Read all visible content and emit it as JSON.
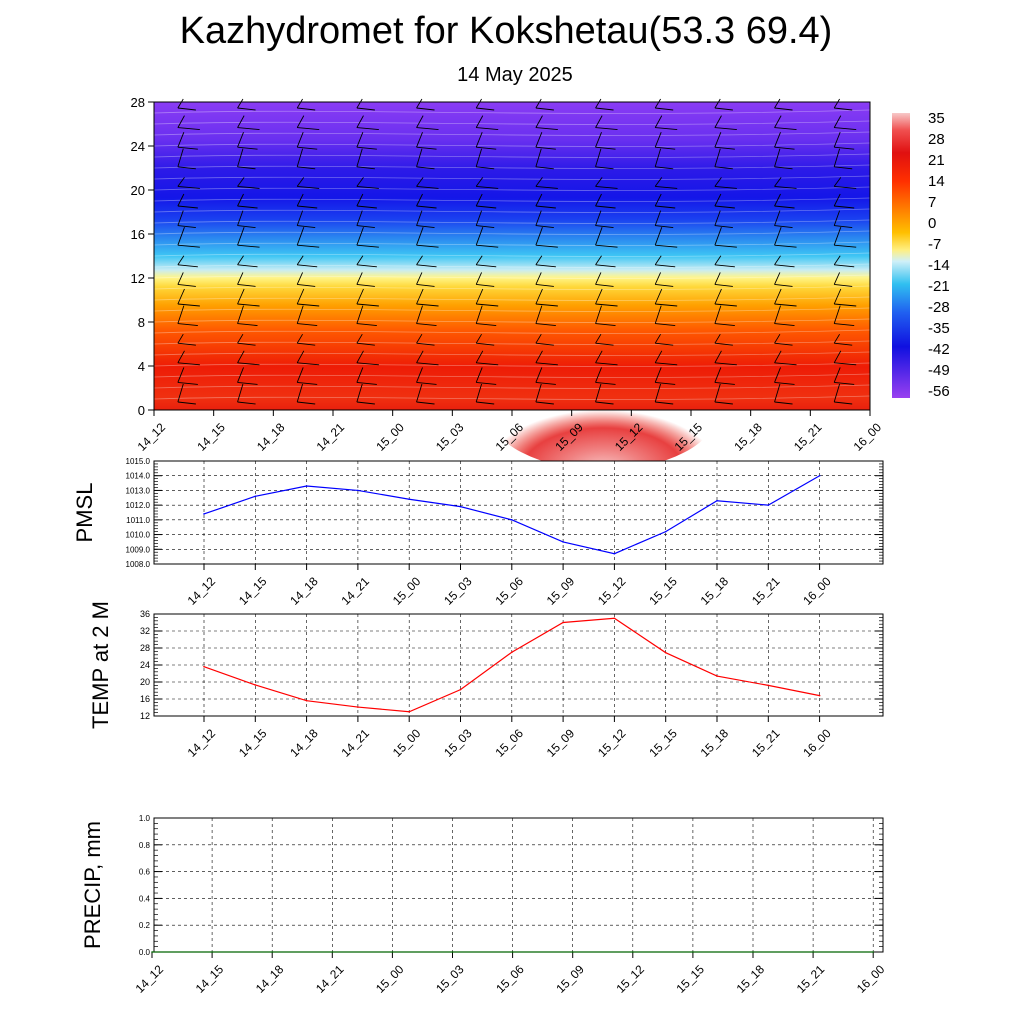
{
  "title": "Kazhydromet for Kokshetau(53.3 69.4)",
  "subtitle": "14 May 2025",
  "chart_data": [
    {
      "type": "heatmap",
      "description_panel": "cross-section",
      "x_ticks": [
        "14_12",
        "14_15",
        "14_18",
        "14_21",
        "15_00",
        "15_03",
        "15_06",
        "15_09",
        "15_12",
        "15_15",
        "15_18",
        "15_21",
        "16_00"
      ],
      "y_ticks": [
        0,
        4,
        8,
        12,
        16,
        20,
        24,
        28
      ],
      "ylim": [
        0,
        28
      ],
      "colorbar_labels": [
        "35",
        "28",
        "21",
        "14",
        "7",
        "0",
        "-7",
        "-14",
        "-21",
        "-28",
        "-35",
        "-42",
        "-49",
        "-56"
      ],
      "colorbar_range": [
        -60,
        38
      ]
    },
    {
      "type": "line",
      "ylabel": "PMSL",
      "x": [
        "14_12",
        "14_15",
        "14_18",
        "14_21",
        "15_00",
        "15_03",
        "15_06",
        "15_09",
        "15_12",
        "15_15",
        "15_18",
        "15_21",
        "16_00"
      ],
      "series": [
        {
          "values": [
            1011.4,
            1012.6,
            1013.3,
            1013.0,
            1012.4,
            1011.9,
            1011.0,
            1009.5,
            1008.7,
            1010.2,
            1012.3,
            1012.0,
            1014.0
          ],
          "color": "#0000ff"
        }
      ],
      "y_ticks": [
        "1008.0",
        "1009.0",
        "1010.0",
        "1011.0",
        "1012.0",
        "1013.0",
        "1014.0",
        "1015.0"
      ],
      "ylim": [
        1008,
        1015
      ]
    },
    {
      "type": "line",
      "ylabel": "TEMP at 2 M",
      "x": [
        "14_12",
        "14_15",
        "14_18",
        "14_21",
        "15_00",
        "15_03",
        "15_06",
        "15_09",
        "15_12",
        "15_15",
        "15_18",
        "15_21",
        "16_00"
      ],
      "series": [
        {
          "values": [
            23.6,
            19.3,
            15.6,
            14.1,
            13.0,
            18.2,
            27.0,
            34.0,
            35.0,
            26.9,
            21.4,
            19.2,
            16.8
          ],
          "color": "#ff0000"
        }
      ],
      "y_ticks": [
        "12",
        "16",
        "20",
        "24",
        "28",
        "32",
        "36"
      ],
      "ylim": [
        12,
        36
      ]
    },
    {
      "type": "line",
      "ylabel": "PRECIP, mm",
      "x": [
        "14_12",
        "14_15",
        "14_18",
        "14_21",
        "15_00",
        "15_03",
        "15_06",
        "15_09",
        "15_12",
        "15_15",
        "15_18",
        "15_21",
        "16_00"
      ],
      "series": [
        {
          "values": [
            0,
            0,
            0,
            0,
            0,
            0,
            0,
            0,
            0,
            0,
            0,
            0,
            0
          ],
          "color": "#006400"
        }
      ],
      "y_ticks": [
        "0.0",
        "0.2",
        "0.4",
        "0.6",
        "0.8",
        "1.0"
      ],
      "ylim": [
        0,
        1
      ]
    }
  ]
}
